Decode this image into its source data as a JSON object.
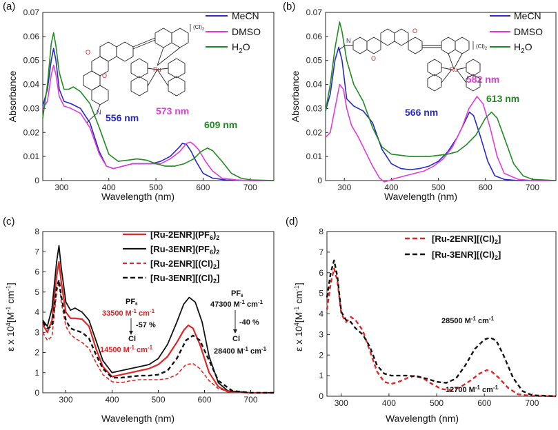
{
  "colors": {
    "MeCN": "#2727c8",
    "DMSO": "#e33ad8",
    "H2O": "#1f8a1f",
    "Ru2": "#e02525",
    "Ru3": "#111111"
  },
  "panels": {
    "a": {
      "label": "(a)",
      "ylabel": "Absorbance",
      "xlabel": "Wavelength (nm)"
    },
    "b": {
      "label": "(b)",
      "ylabel": "Absorbance",
      "xlabel": "Wavelength (nm)"
    },
    "c": {
      "label": "(c)",
      "ylabel_main": "ε x 10",
      "ylabel_sup": "4",
      "ylabel_unit": "[M",
      "ylabel_sup2": "-1",
      "ylabel_unit2": " cm",
      "ylabel_sup3": "-1",
      "ylabel_end": "]",
      "xlabel": "Wavelength (nm)"
    },
    "d": {
      "label": "(d)",
      "ylabel_main": "ε x 10",
      "ylabel_sup": "4",
      "ylabel_unit": "[M",
      "ylabel_sup2": "-1",
      "ylabel_unit2": " cm",
      "ylabel_sup3": "-1",
      "ylabel_end": "]",
      "xlabel": "Wavelength (nm)"
    }
  },
  "legend_ab": {
    "mecn": "MeCN",
    "dmso": "DMSO",
    "h2o_main": "H",
    "h2o_sub": "2",
    "h2o_end": "O"
  },
  "legend_c": [
    {
      "main": "[Ru-2ENR](PF",
      "sub": "6",
      "end": ")",
      "sub2": "2"
    },
    {
      "main": "[Ru-3ENR](PF",
      "sub": "6",
      "end": ")",
      "sub2": "2"
    },
    {
      "main": "[Ru-2ENR][(Cl)",
      "sub": "2",
      "end": "]"
    },
    {
      "main": "[Ru-3ENR][(Cl)",
      "sub": "2",
      "end": "]"
    }
  ],
  "legend_d": [
    {
      "main": "[Ru-2ENR][(Cl)",
      "sub": "2",
      "end": "]"
    },
    {
      "main": "[Ru-3ENR][(Cl)",
      "sub": "2",
      "end": "]"
    }
  ],
  "molecule_labels": {
    "ru": "Ru",
    "o": "O",
    "n": "N",
    "counter": "(Cl)",
    "counter_sub": "2"
  },
  "annotations": {
    "a": {
      "p1": "556 nm",
      "p2": "573 nm",
      "p3": "609 nm"
    },
    "b": {
      "p1": "566 nm",
      "p2": "582 nm",
      "p3": "613 nm"
    },
    "c": {
      "pf6_left": "PF",
      "pf6_left_sub": "6",
      "red_val": "33500 M",
      "red_sup": "-1",
      "red_cm": " cm",
      "red_sup2": "-1",
      "pct_left": "-57 %",
      "cl_left": "Cl",
      "low_val": "14500 M",
      "low_sup": "-1",
      "low_cm": " cm",
      "low_sup2": "-1",
      "pf6_right": "PF",
      "pf6_right_sub": "6",
      "black_val": "47300 M",
      "black_sup": "-1",
      "black_cm": " cm",
      "black_sup2": "-1",
      "pct_right": "-40 %",
      "cl_right": "Cl",
      "low2_val": "28400 M",
      "low2_sup": "-1",
      "low2_cm": " cm",
      "low2_sup2": "-1"
    },
    "d": {
      "hi_val": "28500 M",
      "hi_sup": "-1",
      "hi_cm": " cm",
      "hi_sup2": "-1",
      "lo_val": "12700 M",
      "lo_sup": "-1",
      "lo_cm": " cm",
      "lo_sup2": "-1"
    }
  },
  "chart_data": [
    {
      "panel": "a",
      "type": "line",
      "xlabel": "Wavelength (nm)",
      "ylabel": "Absorbance",
      "xlim": [
        260,
        750
      ],
      "ylim": [
        0,
        0.07
      ],
      "xticks": [
        "300",
        "400",
        "500",
        "600",
        "700"
      ],
      "yticks": [
        "0",
        "0.01",
        "0.02",
        "0.03",
        "0.04",
        "0.05",
        "0.06",
        "0.07"
      ],
      "series": [
        {
          "name": "MeCN",
          "x": [
            260,
            270,
            278,
            283,
            288,
            295,
            305,
            320,
            340,
            360,
            380,
            395,
            410,
            430,
            450,
            470,
            490,
            510,
            530,
            550,
            556,
            565,
            575,
            585,
            600,
            620,
            650,
            700,
            750
          ],
          "y": [
            0.031,
            0.038,
            0.05,
            0.055,
            0.05,
            0.038,
            0.033,
            0.032,
            0.03,
            0.024,
            0.012,
            0.006,
            0.005,
            0.006,
            0.007,
            0.007,
            0.007,
            0.008,
            0.01,
            0.014,
            0.0155,
            0.015,
            0.012,
            0.008,
            0.003,
            0.001,
            0.0002,
            0,
            0
          ]
        },
        {
          "name": "DMSO",
          "x": [
            260,
            270,
            278,
            283,
            288,
            295,
            305,
            320,
            340,
            360,
            380,
            395,
            410,
            430,
            450,
            470,
            490,
            510,
            530,
            550,
            565,
            573,
            580,
            590,
            605,
            620,
            640,
            670,
            700,
            750
          ],
          "y": [
            0.03,
            0.033,
            0.044,
            0.048,
            0.044,
            0.035,
            0.031,
            0.03,
            0.028,
            0.022,
            0.011,
            0.006,
            0.005,
            0.006,
            0.007,
            0.007,
            0.007,
            0.007,
            0.009,
            0.012,
            0.0155,
            0.016,
            0.015,
            0.013,
            0.008,
            0.004,
            0.001,
            0.0003,
            0,
            0
          ]
        },
        {
          "name": "H2O",
          "x": [
            260,
            270,
            278,
            283,
            288,
            295,
            305,
            315,
            325,
            340,
            360,
            380,
            400,
            420,
            440,
            460,
            480,
            500,
            520,
            540,
            560,
            580,
            595,
            609,
            620,
            640,
            660,
            680,
            700,
            750
          ],
          "y": [
            0.026,
            0.04,
            0.057,
            0.0615,
            0.056,
            0.045,
            0.038,
            0.038,
            0.039,
            0.037,
            0.032,
            0.022,
            0.011,
            0.008,
            0.0085,
            0.009,
            0.0085,
            0.007,
            0.006,
            0.006,
            0.007,
            0.009,
            0.012,
            0.0135,
            0.0125,
            0.008,
            0.003,
            0.001,
            0.0003,
            0
          ]
        }
      ],
      "peak_labels": [
        "556 nm",
        "573 nm",
        "609 nm"
      ]
    },
    {
      "panel": "b",
      "type": "line",
      "xlabel": "Wavelength (nm)",
      "ylabel": "Absorbance",
      "xlim": [
        260,
        750
      ],
      "ylim": [
        0,
        0.07
      ],
      "xticks": [
        "300",
        "400",
        "500",
        "600",
        "700"
      ],
      "yticks": [
        "0",
        "0.01",
        "0.02",
        "0.03",
        "0.04",
        "0.05",
        "0.06",
        "0.07"
      ],
      "series": [
        {
          "name": "MeCN",
          "x": [
            260,
            270,
            280,
            288,
            295,
            305,
            320,
            340,
            360,
            380,
            400,
            420,
            440,
            460,
            480,
            500,
            520,
            540,
            555,
            566,
            575,
            590,
            605,
            620,
            640,
            670,
            700,
            750
          ],
          "y": [
            0.029,
            0.036,
            0.05,
            0.0555,
            0.05,
            0.034,
            0.031,
            0.029,
            0.024,
            0.013,
            0.007,
            0.005,
            0.0045,
            0.005,
            0.006,
            0.008,
            0.012,
            0.018,
            0.024,
            0.0285,
            0.027,
            0.018,
            0.008,
            0.002,
            0.0005,
            0,
            0,
            0
          ]
        },
        {
          "name": "DMSO",
          "x": [
            260,
            270,
            280,
            290,
            298,
            305,
            315,
            330,
            345,
            360,
            375,
            385,
            395,
            410,
            430,
            450,
            470,
            490,
            510,
            530,
            550,
            565,
            582,
            595,
            610,
            625,
            640,
            670,
            700,
            750
          ],
          "y": [
            0.018,
            0.02,
            0.03,
            0.04,
            0.038,
            0.03,
            0.023,
            0.018,
            0.012,
            0.006,
            0.001,
            -0.001,
            0,
            0.001,
            0.002,
            0.003,
            0.004,
            0.006,
            0.009,
            0.014,
            0.022,
            0.03,
            0.035,
            0.032,
            0.022,
            0.01,
            0.003,
            0.0005,
            0,
            0
          ]
        },
        {
          "name": "H2O",
          "x": [
            260,
            270,
            280,
            290,
            295,
            305,
            320,
            340,
            360,
            380,
            400,
            420,
            440,
            460,
            480,
            500,
            520,
            540,
            560,
            580,
            600,
            613,
            625,
            640,
            660,
            680,
            700,
            750
          ],
          "y": [
            0.029,
            0.04,
            0.055,
            0.066,
            0.062,
            0.05,
            0.04,
            0.033,
            0.022,
            0.014,
            0.011,
            0.0105,
            0.01,
            0.01,
            0.01,
            0.0105,
            0.011,
            0.012,
            0.015,
            0.019,
            0.026,
            0.0285,
            0.026,
            0.018,
            0.007,
            0.002,
            0.0005,
            0
          ]
        }
      ],
      "peak_labels": [
        "566 nm",
        "582 nm",
        "613 nm"
      ]
    },
    {
      "panel": "c",
      "type": "line",
      "xlabel": "Wavelength (nm)",
      "ylabel": "ε x 10^4 [M^-1 cm^-1]",
      "xlim": [
        250,
        750
      ],
      "ylim": [
        0,
        8
      ],
      "xticks": [
        "300",
        "400",
        "500",
        "600",
        "700"
      ],
      "yticks": [
        "0",
        "1",
        "2",
        "3",
        "4",
        "5",
        "6",
        "7",
        "8"
      ],
      "series": [
        {
          "name": "[Ru-2ENR](PF6)2",
          "x": [
            250,
            260,
            270,
            280,
            285,
            290,
            300,
            310,
            320,
            335,
            350,
            365,
            380,
            400,
            420,
            440,
            460,
            480,
            500,
            520,
            540,
            555,
            565,
            575,
            590,
            610,
            630,
            650,
            700,
            750
          ],
          "y": [
            3.4,
            3.0,
            3.6,
            5.8,
            6.5,
            5.5,
            4.0,
            3.7,
            3.7,
            3.65,
            3.3,
            2.2,
            1.3,
            0.8,
            0.9,
            1.0,
            1.1,
            1.2,
            1.4,
            1.8,
            2.5,
            3.1,
            3.35,
            3.2,
            2.4,
            1.0,
            0.3,
            0.05,
            0,
            0
          ]
        },
        {
          "name": "[Ru-3ENR](PF6)2",
          "x": [
            250,
            260,
            270,
            280,
            285,
            290,
            300,
            310,
            320,
            335,
            350,
            365,
            380,
            400,
            420,
            440,
            460,
            480,
            500,
            520,
            540,
            555,
            567,
            580,
            595,
            610,
            630,
            650,
            700,
            750
          ],
          "y": [
            3.6,
            3.3,
            4.2,
            6.5,
            7.3,
            6.2,
            4.5,
            4.1,
            4.2,
            4.0,
            3.6,
            2.6,
            1.6,
            1.0,
            1.1,
            1.2,
            1.3,
            1.4,
            1.7,
            2.4,
            3.5,
            4.4,
            4.73,
            4.5,
            3.5,
            1.8,
            0.5,
            0.1,
            0,
            0
          ]
        },
        {
          "name": "[Ru-2ENR][(Cl)2]",
          "x": [
            250,
            260,
            270,
            280,
            285,
            290,
            300,
            310,
            320,
            335,
            350,
            365,
            380,
            400,
            420,
            440,
            460,
            480,
            500,
            520,
            540,
            560,
            575,
            590,
            610,
            630,
            660,
            700,
            750
          ],
          "y": [
            3.0,
            2.6,
            2.8,
            5.0,
            5.5,
            4.5,
            3.3,
            2.9,
            2.7,
            2.5,
            2.2,
            1.5,
            0.9,
            0.55,
            0.5,
            0.6,
            0.65,
            0.65,
            0.65,
            0.7,
            0.9,
            1.4,
            1.45,
            1.2,
            0.6,
            0.2,
            0.03,
            0,
            0
          ]
        },
        {
          "name": "[Ru-3ENR][(Cl)2]",
          "x": [
            250,
            260,
            270,
            280,
            285,
            290,
            300,
            310,
            320,
            335,
            350,
            365,
            380,
            400,
            420,
            440,
            460,
            480,
            500,
            520,
            540,
            560,
            575,
            590,
            610,
            630,
            660,
            700,
            750
          ],
          "y": [
            3.5,
            3.2,
            3.3,
            5.2,
            5.6,
            4.8,
            3.6,
            3.2,
            3.1,
            3.0,
            2.7,
            1.9,
            1.2,
            0.75,
            0.75,
            0.8,
            0.85,
            0.85,
            0.9,
            1.1,
            1.7,
            2.6,
            2.84,
            2.6,
            1.6,
            0.6,
            0.1,
            0,
            0
          ]
        }
      ],
      "annotations": [
        "33500 M-1 cm-1",
        "-57 %",
        "14500 M-1 cm-1",
        "47300 M-1 cm-1",
        "-40 %",
        "28400 M-1 cm-1"
      ]
    },
    {
      "panel": "d",
      "type": "line",
      "xlabel": "Wavelength (nm)",
      "ylabel": "ε x 10^4 [M^-1 cm^-1]",
      "xlim": [
        270,
        750
      ],
      "ylim": [
        0,
        8
      ],
      "xticks": [
        "300",
        "400",
        "500",
        "600",
        "700"
      ],
      "yticks": [
        "0",
        "1",
        "2",
        "3",
        "4",
        "5",
        "6",
        "7",
        "8"
      ],
      "series": [
        {
          "name": "[Ru-2ENR][(Cl)2]",
          "x": [
            270,
            278,
            285,
            292,
            300,
            310,
            320,
            330,
            345,
            360,
            375,
            390,
            405,
            420,
            440,
            455,
            470,
            490,
            510,
            530,
            550,
            570,
            590,
            605,
            615,
            630,
            650,
            670,
            700,
            750
          ],
          "y": [
            4.2,
            5.5,
            6.2,
            5.6,
            4.0,
            3.6,
            3.85,
            3.7,
            3.2,
            2.2,
            1.2,
            0.7,
            0.6,
            0.7,
            0.9,
            1.0,
            0.9,
            0.6,
            0.35,
            0.3,
            0.45,
            0.75,
            1.1,
            1.27,
            1.2,
            0.9,
            0.4,
            0.1,
            0.01,
            0
          ]
        },
        {
          "name": "[Ru-3ENR][(Cl)2]",
          "x": [
            270,
            278,
            285,
            292,
            300,
            310,
            320,
            330,
            345,
            360,
            375,
            390,
            405,
            420,
            440,
            460,
            480,
            500,
            520,
            540,
            560,
            580,
            600,
            612,
            625,
            640,
            660,
            680,
            700,
            750
          ],
          "y": [
            4.8,
            6.0,
            6.6,
            5.8,
            4.1,
            3.7,
            3.6,
            3.3,
            3.0,
            2.4,
            1.5,
            1.1,
            1.0,
            1.0,
            1.0,
            0.95,
            0.85,
            0.7,
            0.65,
            0.85,
            1.5,
            2.3,
            2.75,
            2.85,
            2.7,
            2.0,
            0.9,
            0.25,
            0.05,
            0
          ]
        }
      ],
      "annotations": [
        "28500 M-1 cm-1",
        "12700 M-1 cm-1"
      ]
    }
  ]
}
